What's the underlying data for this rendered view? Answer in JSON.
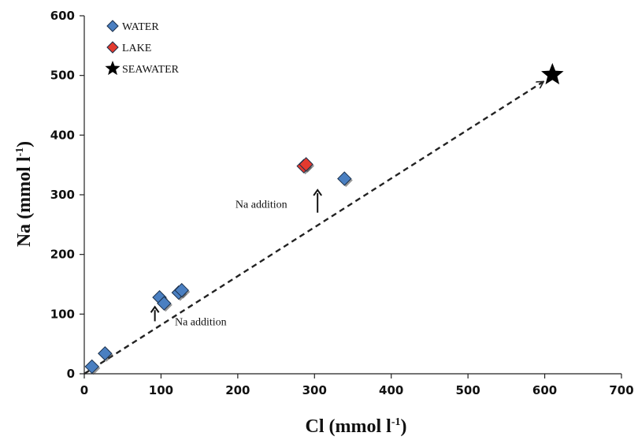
{
  "chart_data": {
    "type": "scatter",
    "xlabel": "Cl (mmol l",
    "xlabel_sup": "-1",
    "xlabel_end": ")",
    "ylabel": "Na (mmol l",
    "ylabel_sup": "-1",
    "ylabel_end": ")",
    "xlim": [
      0,
      700
    ],
    "ylim": [
      0,
      600
    ],
    "xticks": [
      0,
      100,
      200,
      300,
      400,
      500,
      600,
      700
    ],
    "yticks": [
      0,
      100,
      200,
      300,
      400,
      500,
      600
    ],
    "grid": false,
    "legend_position": "top-left",
    "series": [
      {
        "name": "WATER",
        "marker": "diamond",
        "color": "#4a7fc1",
        "points": [
          {
            "x": 10,
            "y": 12
          },
          {
            "x": 27,
            "y": 34
          },
          {
            "x": 98,
            "y": 128
          },
          {
            "x": 104,
            "y": 118
          },
          {
            "x": 123,
            "y": 136
          },
          {
            "x": 127,
            "y": 140
          },
          {
            "x": 339,
            "y": 327
          }
        ]
      },
      {
        "name": "LAKE",
        "marker": "diamond",
        "color": "#e23a2f",
        "points": [
          {
            "x": 286,
            "y": 348
          },
          {
            "x": 289,
            "y": 351
          }
        ]
      },
      {
        "name": "SEAWATER",
        "marker": "star",
        "color": "#000000",
        "points": [
          {
            "x": 610,
            "y": 501
          }
        ]
      }
    ],
    "mixing_line": {
      "from": {
        "x": 0,
        "y": 0
      },
      "to": {
        "x": 610,
        "y": 501
      },
      "style": "dashed",
      "color": "#222222"
    },
    "annotations": [
      {
        "text": "Na addition",
        "arrow_x": 92,
        "arrow_y1": 88,
        "arrow_y2": 112,
        "text_x": 118,
        "text_y": 88
      },
      {
        "text": "Na addition",
        "arrow_x": 304,
        "arrow_y1": 270,
        "arrow_y2": 308,
        "text_x": 197,
        "text_y": 285
      }
    ]
  }
}
